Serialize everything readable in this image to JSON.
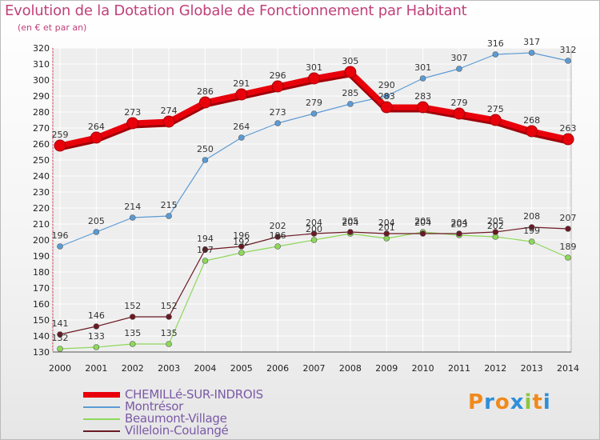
{
  "header": {
    "title": "Evolution de la Dotation Globale de Fonctionnement par Habitant",
    "subtitle": "(en € et par an)"
  },
  "brand": {
    "text": "Proxiti",
    "letters": [
      "P",
      "r",
      "o",
      "x",
      "i",
      "t",
      "i"
    ],
    "colors": [
      "#f08a1c",
      "#2f8fd8",
      "#f08a1c",
      "#2f8fd8",
      "#8cc63f",
      "#f08a1c",
      "#2f8fd8"
    ]
  },
  "chart_data": {
    "type": "line",
    "title": "Evolution de la Dotation Globale de Fonctionnement par Habitant",
    "subtitle": "(en € et par an)",
    "xlabel": "",
    "ylabel": "",
    "categories": [
      "2000",
      "2001",
      "2002",
      "2003",
      "2004",
      "2005",
      "2006",
      "2007",
      "2008",
      "2009",
      "2010",
      "2011",
      "2012",
      "2013",
      "2014"
    ],
    "ylim": [
      130,
      320
    ],
    "yticks": [
      130,
      140,
      150,
      160,
      170,
      180,
      190,
      200,
      210,
      220,
      230,
      240,
      250,
      260,
      270,
      280,
      290,
      300,
      310,
      320
    ],
    "grid": true,
    "legend_position": "bottom-left",
    "series": [
      {
        "name": "CHEMILLé-SUR-INDROIS",
        "color": "#e8000b",
        "values": [
          259,
          264,
          273,
          274,
          286,
          291,
          296,
          301,
          305,
          283,
          283,
          279,
          275,
          268,
          263
        ],
        "labels": [
          "259",
          "264",
          "273",
          "274",
          "286",
          "291",
          "296",
          "301",
          "305",
          "283",
          "283",
          "279",
          "275",
          "268",
          "263"
        ]
      },
      {
        "name": "Montrésor",
        "color": "#5b9bd5",
        "values": [
          196,
          205,
          214,
          215,
          250,
          264,
          273,
          279,
          285,
          290,
          301,
          307,
          316,
          317,
          312
        ],
        "labels": [
          "196",
          "205",
          "214",
          "215",
          "250",
          "264",
          "273",
          "279",
          "285",
          "290",
          "301",
          "307",
          "316",
          "317",
          "312"
        ]
      },
      {
        "name": "Beaumont-Village",
        "color": "#8ed85a",
        "values": [
          132,
          133,
          135,
          135,
          187,
          192,
          196,
          200,
          204,
          201,
          205,
          203,
          202,
          199,
          189
        ],
        "labels": [
          "132",
          "133",
          "135",
          "135",
          "187",
          "192",
          "196",
          "200",
          "204",
          "201",
          "205",
          "203",
          "202",
          "199",
          "189"
        ]
      },
      {
        "name": "Villeloin-Coulangé",
        "color": "#6b1a24",
        "values": [
          141,
          146,
          152,
          152,
          194,
          196,
          202,
          204,
          205,
          204,
          204,
          204,
          205,
          208,
          207
        ],
        "labels": [
          "141",
          "146",
          "152",
          "152",
          "194",
          "196",
          "202",
          "204",
          "205",
          "204",
          "204",
          "204",
          "205",
          "208",
          "207"
        ]
      }
    ]
  }
}
